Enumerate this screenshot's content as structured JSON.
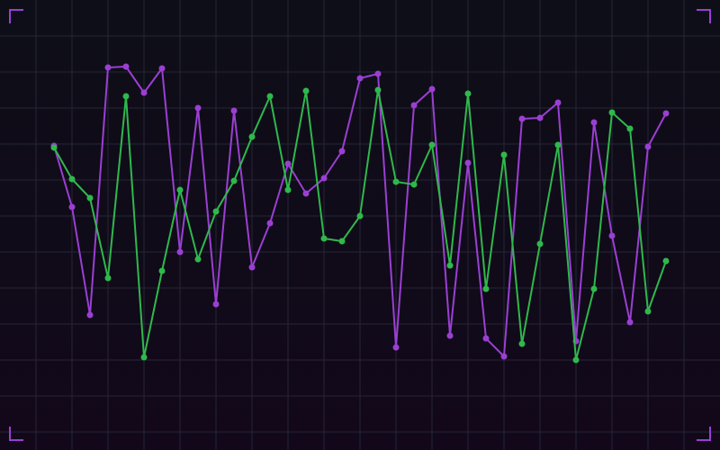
{
  "chart_data": {
    "type": "line",
    "title": "",
    "xlabel": "",
    "ylabel": "",
    "grid": true,
    "x": [
      0,
      1,
      2,
      3,
      4,
      5,
      6,
      7,
      8,
      9,
      10,
      11,
      12,
      13,
      14,
      15,
      16,
      17,
      18,
      19,
      20,
      21,
      22,
      23,
      24,
      25,
      26,
      27,
      28,
      29,
      30,
      31,
      32,
      33,
      34
    ],
    "ylim": [
      0,
      100
    ],
    "series": [
      {
        "color": "#9a3fd2",
        "values": [
          67.6,
          54,
          30,
          85,
          85.2,
          79.4,
          84.8,
          44,
          76,
          32.4,
          75.4,
          40.6,
          50.4,
          63.6,
          57,
          60.4,
          66.4,
          82.6,
          83.6,
          22.8,
          76.6,
          80.2,
          25.4,
          63.8,
          24.8,
          20.8,
          73.6,
          73.8,
          77.2,
          24.2,
          72.8,
          47.6,
          28.4,
          67.4,
          74.8
        ]
      },
      {
        "color": "#2fb84c",
        "values": [
          67.2,
          60.2,
          56,
          38.2,
          78.6,
          20.6,
          39.8,
          57.8,
          42.4,
          53,
          59.8,
          69.6,
          78.6,
          57.8,
          79.8,
          47,
          46.4,
          52,
          80,
          59.6,
          59,
          67.8,
          41,
          79.2,
          35.8,
          65.6,
          23.6,
          45.8,
          67.8,
          20,
          35.8,
          75,
          71.4,
          30.8,
          42
        ]
      }
    ],
    "frame_color": "#9a3fd2"
  }
}
